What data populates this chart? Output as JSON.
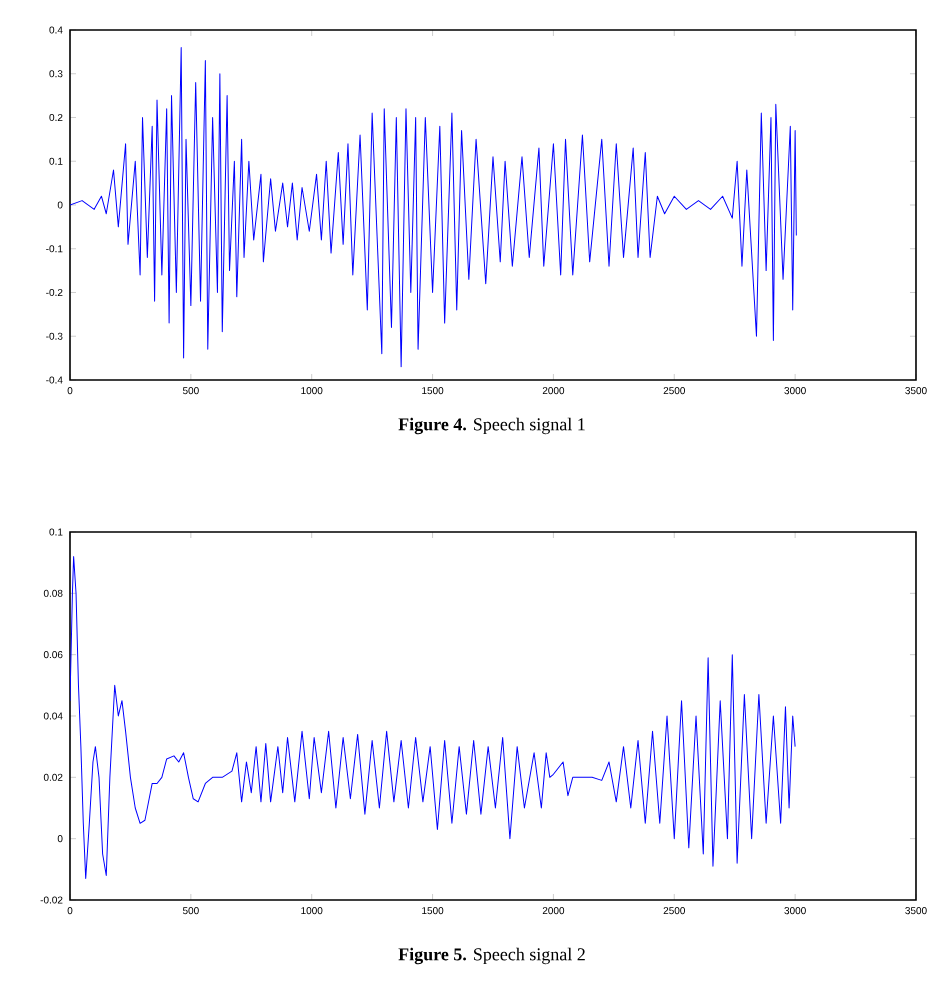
{
  "chart_data": [
    {
      "type": "line",
      "title": "**Figure 4.**  Speech signal 1",
      "color": "#0000ff",
      "xlim": [
        0,
        3500
      ],
      "ylim": [
        -0.4,
        0.4
      ],
      "xticks": [
        0,
        500,
        1000,
        1500,
        2000,
        2500,
        3000,
        3500
      ],
      "yticks": [
        -0.4,
        -0.3,
        -0.2,
        -0.1,
        0,
        0.1,
        0.2,
        0.3,
        0.4
      ],
      "x": [
        0,
        50,
        100,
        130,
        150,
        180,
        200,
        230,
        240,
        270,
        290,
        300,
        320,
        340,
        350,
        360,
        380,
        400,
        410,
        420,
        440,
        460,
        470,
        480,
        500,
        520,
        540,
        560,
        570,
        590,
        610,
        620,
        630,
        650,
        660,
        680,
        690,
        710,
        720,
        740,
        760,
        790,
        800,
        830,
        850,
        880,
        900,
        920,
        940,
        960,
        990,
        1020,
        1040,
        1060,
        1080,
        1110,
        1130,
        1150,
        1170,
        1200,
        1230,
        1250,
        1290,
        1300,
        1330,
        1350,
        1370,
        1390,
        1410,
        1430,
        1440,
        1470,
        1500,
        1530,
        1550,
        1580,
        1600,
        1620,
        1650,
        1680,
        1720,
        1750,
        1780,
        1800,
        1830,
        1870,
        1900,
        1940,
        1960,
        2000,
        2030,
        2050,
        2080,
        2120,
        2150,
        2200,
        2230,
        2260,
        2290,
        2330,
        2350,
        2380,
        2400,
        2430,
        2460,
        2500,
        2550,
        2600,
        2650,
        2700,
        2740,
        2760,
        2780,
        2800,
        2840,
        2860,
        2880,
        2900,
        2910,
        2920,
        2950,
        2980,
        2990,
        3000,
        3005
      ],
      "values": [
        0,
        0.01,
        -0.01,
        0.02,
        -0.02,
        0.08,
        -0.05,
        0.14,
        -0.09,
        0.1,
        -0.16,
        0.2,
        -0.12,
        0.18,
        -0.22,
        0.24,
        -0.16,
        0.22,
        -0.27,
        0.25,
        -0.2,
        0.36,
        -0.35,
        0.15,
        -0.23,
        0.28,
        -0.22,
        0.33,
        -0.33,
        0.2,
        -0.2,
        0.3,
        -0.29,
        0.25,
        -0.15,
        0.1,
        -0.21,
        0.15,
        -0.12,
        0.1,
        -0.08,
        0.07,
        -0.13,
        0.06,
        -0.06,
        0.05,
        -0.05,
        0.05,
        -0.08,
        0.04,
        -0.06,
        0.07,
        -0.08,
        0.1,
        -0.11,
        0.12,
        -0.09,
        0.14,
        -0.16,
        0.16,
        -0.24,
        0.21,
        -0.34,
        0.22,
        -0.28,
        0.2,
        -0.37,
        0.22,
        -0.2,
        0.2,
        -0.33,
        0.2,
        -0.2,
        0.18,
        -0.27,
        0.21,
        -0.24,
        0.17,
        -0.17,
        0.15,
        -0.18,
        0.11,
        -0.13,
        0.1,
        -0.14,
        0.11,
        -0.12,
        0.13,
        -0.14,
        0.14,
        -0.16,
        0.15,
        -0.16,
        0.16,
        -0.13,
        0.15,
        -0.14,
        0.14,
        -0.12,
        0.13,
        -0.12,
        0.12,
        -0.12,
        0.02,
        -0.02,
        0.02,
        -0.01,
        0.01,
        -0.01,
        0.02,
        -0.03,
        0.1,
        -0.14,
        0.08,
        -0.3,
        0.21,
        -0.15,
        0.2,
        -0.31,
        0.23,
        -0.17,
        0.18,
        -0.24,
        0.17,
        -0.07
      ]
    },
    {
      "type": "line",
      "title": "**Figure 5.**  Speech signal 2",
      "color": "#0000ff",
      "xlim": [
        0,
        3500
      ],
      "ylim": [
        -0.02,
        0.1
      ],
      "xticks": [
        0,
        500,
        1000,
        1500,
        2000,
        2500,
        3000,
        3500
      ],
      "yticks": [
        -0.02,
        0,
        0.02,
        0.04,
        0.06,
        0.08,
        0.1
      ],
      "x": [
        0,
        10,
        15,
        25,
        35,
        45,
        55,
        65,
        80,
        95,
        105,
        120,
        135,
        150,
        165,
        185,
        200,
        215,
        230,
        250,
        270,
        290,
        310,
        340,
        360,
        380,
        400,
        430,
        450,
        470,
        490,
        510,
        530,
        560,
        590,
        630,
        670,
        690,
        710,
        730,
        750,
        770,
        790,
        810,
        830,
        860,
        880,
        900,
        930,
        960,
        990,
        1010,
        1040,
        1070,
        1100,
        1130,
        1160,
        1190,
        1220,
        1250,
        1280,
        1310,
        1340,
        1370,
        1400,
        1430,
        1460,
        1490,
        1520,
        1550,
        1580,
        1610,
        1640,
        1670,
        1700,
        1730,
        1760,
        1790,
        1820,
        1850,
        1880,
        1920,
        1950,
        1970,
        1985,
        2000,
        2040,
        2060,
        2080,
        2120,
        2160,
        2200,
        2230,
        2260,
        2290,
        2320,
        2350,
        2380,
        2410,
        2440,
        2470,
        2500,
        2530,
        2560,
        2590,
        2620,
        2640,
        2660,
        2690,
        2720,
        2740,
        2760,
        2790,
        2820,
        2850,
        2880,
        2910,
        2940,
        2960,
        2975,
        2990,
        3000
      ],
      "values": [
        0.045,
        0.08,
        0.092,
        0.08,
        0.05,
        0.03,
        0.005,
        -0.013,
        0.005,
        0.025,
        0.03,
        0.02,
        -0.005,
        -0.012,
        0.02,
        0.05,
        0.04,
        0.045,
        0.035,
        0.02,
        0.01,
        0.005,
        0.006,
        0.018,
        0.018,
        0.02,
        0.026,
        0.027,
        0.025,
        0.028,
        0.02,
        0.013,
        0.012,
        0.018,
        0.02,
        0.02,
        0.022,
        0.028,
        0.012,
        0.025,
        0.015,
        0.03,
        0.012,
        0.031,
        0.012,
        0.03,
        0.015,
        0.033,
        0.012,
        0.035,
        0.013,
        0.033,
        0.015,
        0.035,
        0.01,
        0.033,
        0.013,
        0.034,
        0.008,
        0.032,
        0.01,
        0.035,
        0.012,
        0.032,
        0.01,
        0.033,
        0.012,
        0.03,
        0.003,
        0.032,
        0.005,
        0.03,
        0.008,
        0.032,
        0.008,
        0.03,
        0.01,
        0.033,
        0.0,
        0.03,
        0.01,
        0.028,
        0.01,
        0.028,
        0.02,
        0.021,
        0.025,
        0.014,
        0.02,
        0.02,
        0.02,
        0.019,
        0.025,
        0.012,
        0.03,
        0.01,
        0.032,
        0.005,
        0.035,
        0.005,
        0.04,
        0.0,
        0.045,
        -0.003,
        0.04,
        -0.005,
        0.059,
        -0.009,
        0.045,
        0.0,
        0.06,
        -0.008,
        0.047,
        0.0,
        0.047,
        0.005,
        0.04,
        0.005,
        0.043,
        0.01,
        0.04,
        0.03
      ]
    }
  ]
}
